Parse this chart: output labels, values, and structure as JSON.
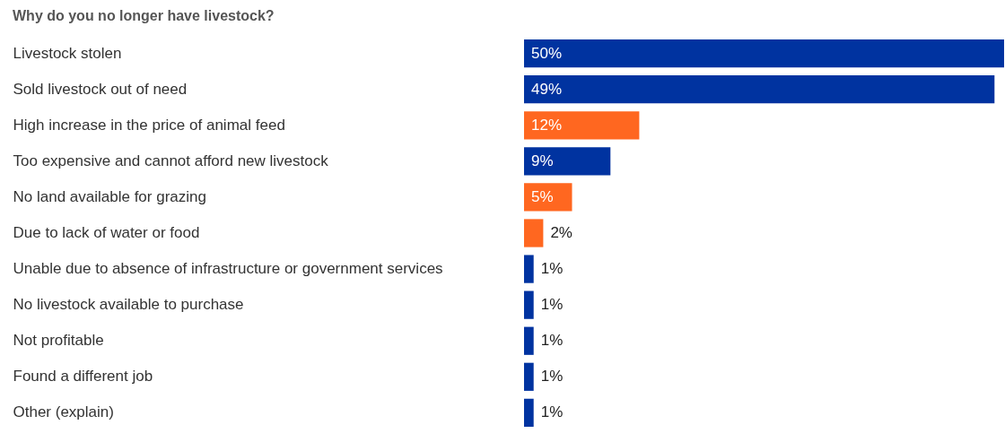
{
  "chart_data": {
    "type": "bar",
    "orientation": "horizontal",
    "title": "Why do you no longer have livestock?",
    "categories": [
      "Livestock stolen",
      "Sold livestock out of need",
      "High increase in the price of animal feed",
      "Too expensive and cannot afford new livestock",
      "No land available for grazing",
      "Due to lack of water or food",
      "Unable due to absence of infrastructure or government services",
      "No livestock available to purchase",
      "Not profitable",
      "Found a different job",
      "Other (explain)"
    ],
    "values": [
      50,
      49,
      12,
      9,
      5,
      2,
      1,
      1,
      1,
      1,
      1
    ],
    "colors": [
      "#0033a0",
      "#0033a0",
      "#ff6720",
      "#0033a0",
      "#ff6720",
      "#ff6720",
      "#0033a0",
      "#0033a0",
      "#0033a0",
      "#0033a0",
      "#0033a0"
    ],
    "value_labels": [
      "50%",
      "49%",
      "12%",
      "9%",
      "5%",
      "2%",
      "1%",
      "1%",
      "1%",
      "1%",
      "1%"
    ],
    "xlim": [
      0,
      50
    ],
    "tick_labels": "y",
    "grid": false
  }
}
